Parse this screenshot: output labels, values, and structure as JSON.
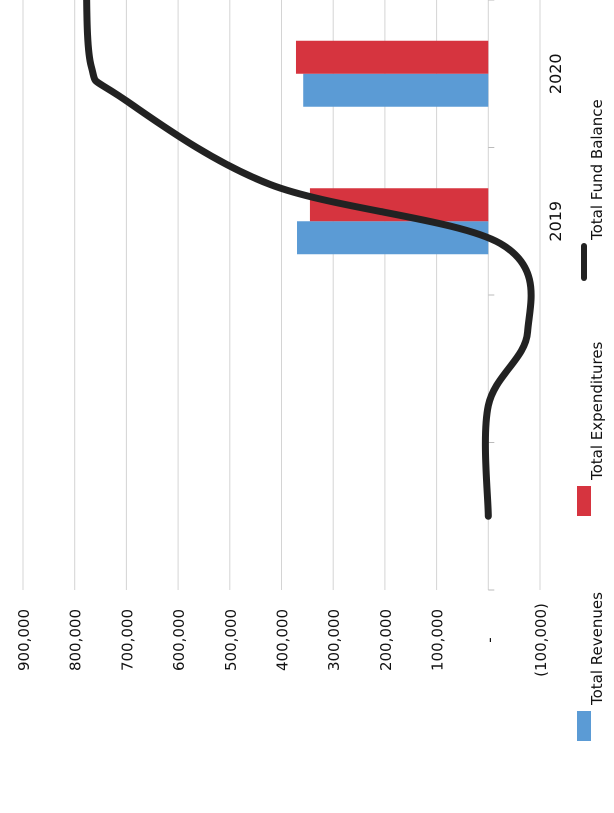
{
  "chart_data": {
    "type": "bar",
    "orientation": "rotated-90",
    "categories": [
      "2019",
      "2020"
    ],
    "series": [
      {
        "name": "Total Revenues",
        "type": "bar",
        "color": "#5b9bd5",
        "values": [
          370000,
          358000
        ]
      },
      {
        "name": "Total Expenditures",
        "type": "bar",
        "color": "#d6343f",
        "values": [
          345000,
          372000
        ]
      },
      {
        "name": "Total Fund Balance",
        "type": "line",
        "color": "#222222",
        "values": [
          -76000,
          768000
        ]
      }
    ],
    "value_axis": {
      "min": -100000,
      "max": 900000,
      "step": 100000,
      "tick_labels": [
        "(100,000)",
        "-",
        "100,000",
        "200,000",
        "300,000",
        "400,000",
        "500,000",
        "600,000",
        "700,000",
        "800,000",
        "900,000"
      ]
    },
    "grid": true,
    "legend_position": "bottom"
  }
}
